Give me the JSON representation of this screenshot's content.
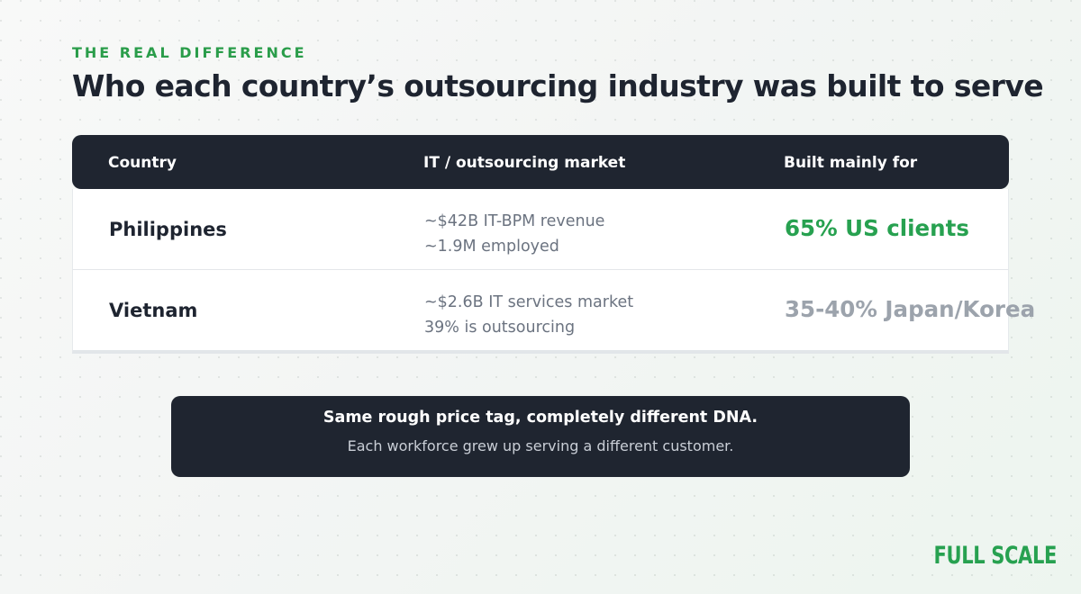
{
  "eyebrow": "THE REAL DIFFERENCE",
  "title": "Who each country’s outsourcing industry was built to serve",
  "table": {
    "headers": [
      "Country",
      "IT / outsourcing market",
      "Built mainly for"
    ],
    "rows": [
      {
        "country": "Philippines",
        "market_line1": "~$42B IT-BPM revenue",
        "market_line2": "~1.9M employed",
        "built_for": "65% US clients"
      },
      {
        "country": "Vietnam",
        "market_line1": "~$2.6B IT services market",
        "market_line2": "39% is outsourcing",
        "built_for": "35-40% Japan/Korea"
      }
    ]
  },
  "callout": {
    "headline": "Same rough price tag, completely different DNA.",
    "subtext": "Each workforce grew up serving a different customer."
  },
  "logo": "FULL SCALE",
  "colors": {
    "accent_green": "#27a150",
    "dark_navy": "#1f2530",
    "muted_grey": "#9ca3ac"
  }
}
